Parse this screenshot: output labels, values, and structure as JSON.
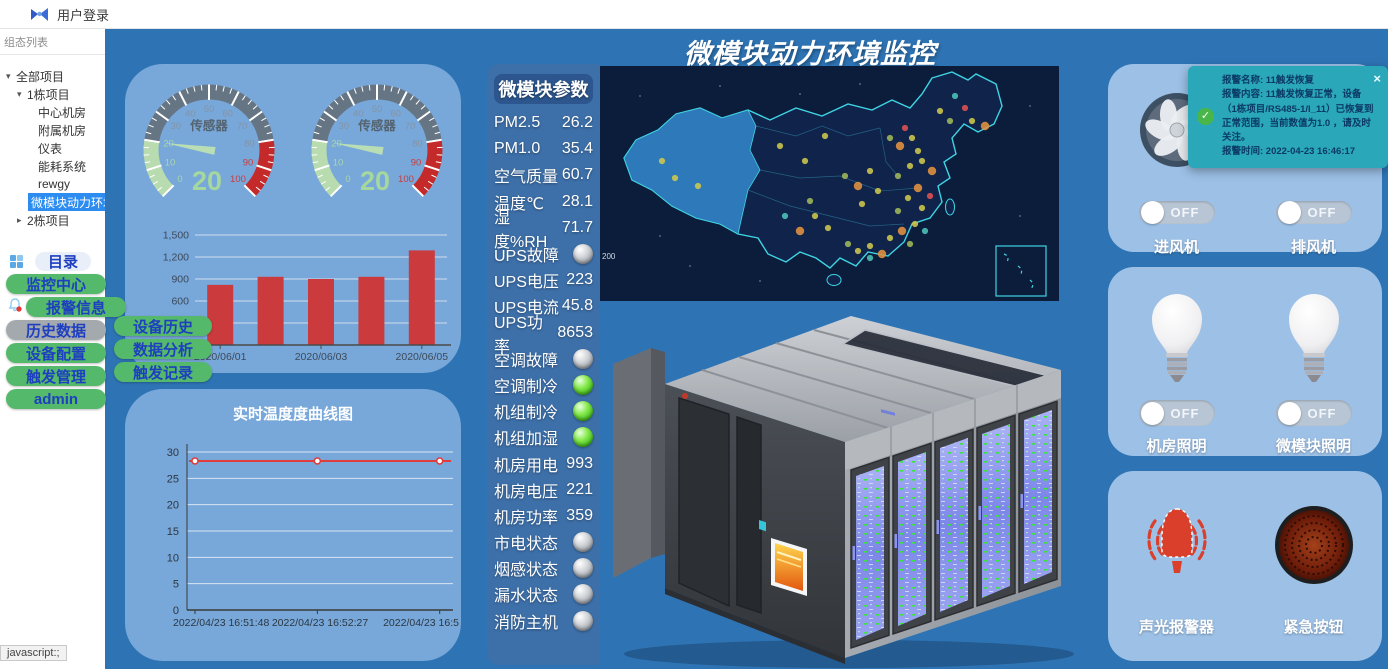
{
  "top_bar": {
    "login_label": "用户登录"
  },
  "sidebar": {
    "header": "组态列表",
    "tree": [
      {
        "label": "全部项目",
        "level": 0,
        "arrow": "down"
      },
      {
        "label": "1栋项目",
        "level": 1,
        "arrow": "down"
      },
      {
        "label": "中心机房",
        "level": 2
      },
      {
        "label": "附属机房",
        "level": 2
      },
      {
        "label": "仪表",
        "level": 2
      },
      {
        "label": "能耗系统",
        "level": 2
      },
      {
        "label": "rewgy",
        "level": 2
      },
      {
        "label": "微模块动力环境",
        "level": 2,
        "selected": true
      },
      {
        "label": "2栋项目",
        "level": 1,
        "arrow": "right"
      }
    ]
  },
  "menu": {
    "directory_label": "目录",
    "items": [
      {
        "label": "监控中心",
        "style": "green"
      },
      {
        "label": "报警信息",
        "style": "green",
        "icon": "bell"
      },
      {
        "label": "历史数据",
        "style": "gray"
      },
      {
        "label": "设备配置",
        "style": "green"
      },
      {
        "label": "触发管理",
        "style": "green"
      },
      {
        "label": "admin",
        "style": "green"
      }
    ],
    "submenu": [
      "设备历史",
      "数据分析",
      "触发记录"
    ]
  },
  "main": {
    "title": "微模块动力环境监控"
  },
  "chart_data": [
    {
      "type": "gauge",
      "title": "传感器",
      "value": 20,
      "min": 0,
      "max": 100,
      "tick_step": 10,
      "zones": [
        {
          "to": 20,
          "color": "#b8dcb0"
        },
        {
          "to": 80,
          "color": "#667584"
        },
        {
          "to": 100,
          "color": "#c42a2a"
        }
      ]
    },
    {
      "type": "gauge",
      "title": "传感器",
      "value": 20,
      "min": 0,
      "max": 100,
      "tick_step": 10,
      "zones": [
        {
          "to": 20,
          "color": "#b8dcb0"
        },
        {
          "to": 80,
          "color": "#667584"
        },
        {
          "to": 100,
          "color": "#c42a2a"
        }
      ]
    },
    {
      "type": "bar",
      "categories": [
        "2020/06/01",
        "2020/06/02",
        "2020/06/03",
        "2020/06/04",
        "2020/06/05"
      ],
      "values": [
        820,
        930,
        900,
        930,
        1290
      ],
      "shown_tick_indexes": [
        0,
        2,
        4
      ],
      "ylim": [
        0,
        1500
      ],
      "ytick": 300,
      "bar_color": "#cb3a3c",
      "grid": true
    },
    {
      "type": "line",
      "title": "实时温度度曲线图",
      "x": [
        "2022/04/23 16:51:48",
        "2022/04/23 16:52:27",
        "2022/04/23 16:5"
      ],
      "values": [
        28.3,
        28.3,
        28.3
      ],
      "ylim": [
        0,
        30
      ],
      "ytick": 5,
      "line_color": "#e03c3c",
      "grid": true
    }
  ],
  "params": {
    "header": "微模块参数",
    "rows": [
      {
        "label": "PM2.5",
        "value": "26.2"
      },
      {
        "label": "PM1.0",
        "value": "35.4"
      },
      {
        "label": "空气质量",
        "value": "60.7"
      },
      {
        "label": "温度℃",
        "value": "28.1"
      },
      {
        "label": "湿度%RH",
        "value": "71.7"
      },
      {
        "label": "UPS故障",
        "led": "gray"
      },
      {
        "label": "UPS电压",
        "value": "223"
      },
      {
        "label": "UPS电流",
        "value": "45.8"
      },
      {
        "label": "UPS功率",
        "value": "8653"
      },
      {
        "label": "空调故障",
        "led": "gray"
      },
      {
        "label": "空调制冷",
        "led": "green"
      },
      {
        "label": "机组制冷",
        "led": "green"
      },
      {
        "label": "机组加湿",
        "led": "green"
      },
      {
        "label": "机房用电",
        "value": "993"
      },
      {
        "label": "机房电压",
        "value": "221"
      },
      {
        "label": "机房功率",
        "value": "359"
      },
      {
        "label": "市电状态",
        "led": "gray"
      },
      {
        "label": "烟感状态",
        "led": "gray"
      },
      {
        "label": "漏水状态",
        "led": "gray"
      },
      {
        "label": "消防主机",
        "led": "gray"
      }
    ]
  },
  "map": {
    "scale_label": "200",
    "dot_colors": {
      "y": "#cfc84d",
      "o": "#e2923f",
      "r": "#e05252",
      "t": "#4fc3b8",
      "g": "#9fb859"
    },
    "dots": [
      [
        62,
        95,
        "y"
      ],
      [
        75,
        112,
        "y"
      ],
      [
        98,
        120,
        "y"
      ],
      [
        180,
        80,
        "y"
      ],
      [
        205,
        95,
        "y"
      ],
      [
        225,
        70,
        "y"
      ],
      [
        355,
        30,
        "t"
      ],
      [
        365,
        42,
        "r"
      ],
      [
        372,
        55,
        "y"
      ],
      [
        385,
        60,
        "o"
      ],
      [
        350,
        55,
        "g"
      ],
      [
        340,
        45,
        "y"
      ],
      [
        305,
        62,
        "r"
      ],
      [
        312,
        72,
        "y"
      ],
      [
        300,
        80,
        "o"
      ],
      [
        318,
        85,
        "y"
      ],
      [
        290,
        72,
        "g"
      ],
      [
        322,
        95,
        "y"
      ],
      [
        332,
        105,
        "o"
      ],
      [
        310,
        100,
        "y"
      ],
      [
        298,
        110,
        "g"
      ],
      [
        270,
        105,
        "y"
      ],
      [
        258,
        120,
        "o"
      ],
      [
        278,
        125,
        "y"
      ],
      [
        245,
        110,
        "g"
      ],
      [
        262,
        138,
        "y"
      ],
      [
        318,
        122,
        "o"
      ],
      [
        330,
        130,
        "r"
      ],
      [
        308,
        132,
        "y"
      ],
      [
        322,
        142,
        "y"
      ],
      [
        298,
        145,
        "g"
      ],
      [
        315,
        158,
        "y"
      ],
      [
        302,
        165,
        "o"
      ],
      [
        325,
        165,
        "t"
      ],
      [
        290,
        172,
        "y"
      ],
      [
        310,
        178,
        "g"
      ],
      [
        270,
        180,
        "y"
      ],
      [
        282,
        188,
        "o"
      ],
      [
        258,
        185,
        "y"
      ],
      [
        270,
        192,
        "t"
      ],
      [
        248,
        178,
        "g"
      ],
      [
        215,
        150,
        "y"
      ],
      [
        200,
        165,
        "o"
      ],
      [
        228,
        162,
        "y"
      ],
      [
        185,
        150,
        "t"
      ],
      [
        210,
        135,
        "g"
      ]
    ]
  },
  "right": {
    "fans": [
      {
        "label": "进风机",
        "switch": "OFF"
      },
      {
        "label": "排风机",
        "switch": "OFF"
      }
    ],
    "lights": [
      {
        "label": "机房照明",
        "switch": "OFF"
      },
      {
        "label": "微模块照明",
        "switch": "OFF"
      }
    ],
    "alarms": [
      {
        "label": "声光报警器"
      },
      {
        "label": "紧急按钮"
      }
    ]
  },
  "notification": {
    "name_line": "报警名称: 11触发恢复",
    "content_line": "报警内容: 11触发恢复正常，设备（1栋项目/RS485-1/I_11）已恢复到正常范围，当前数值为1.0 ，请及时关注。",
    "time_line": "报警时间: 2022-04-23 16:46:17",
    "close": "×",
    "check": "✓"
  },
  "status_tooltip": "javascript:;",
  "colors": {
    "accent_green": "#55b96b",
    "alert_teal": "#2aa7b9",
    "selected_blue": "#2d8cf0",
    "main_bg": "#2e74b5",
    "panel_bg": "#78a7d9",
    "card_bg": "#9cc0e6"
  }
}
